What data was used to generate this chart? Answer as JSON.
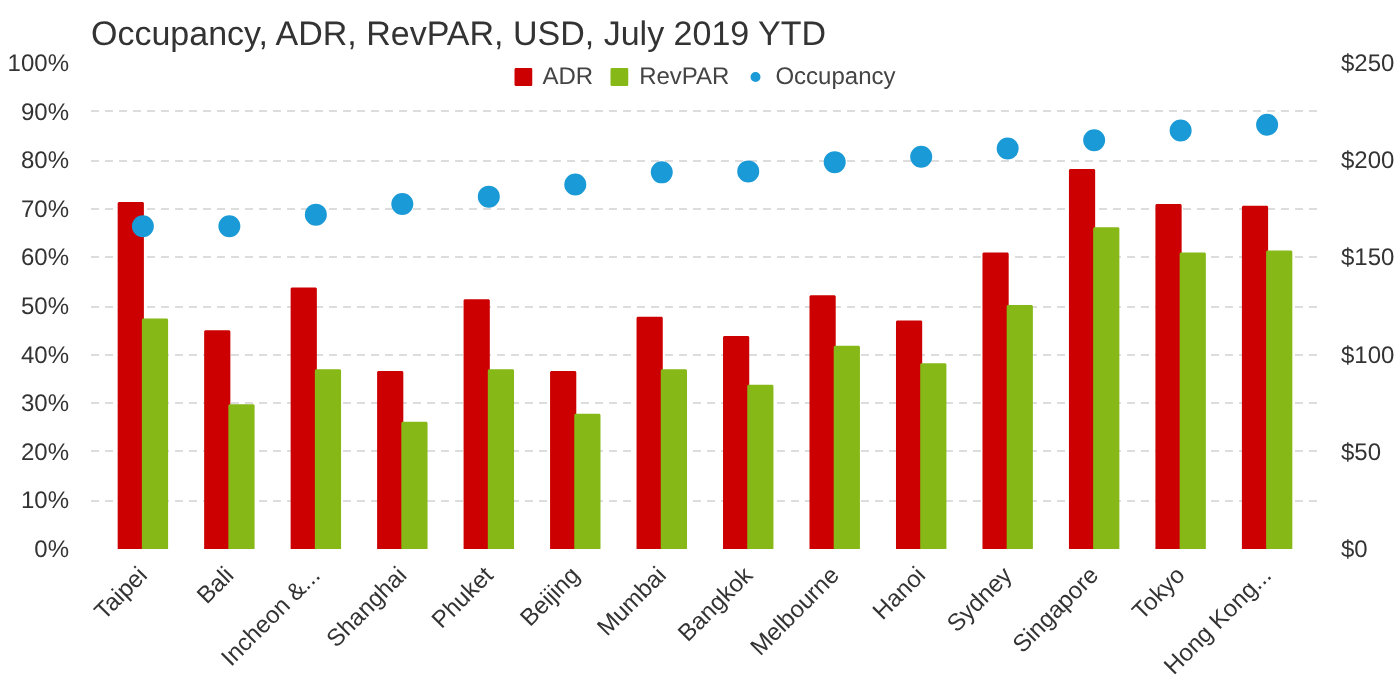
{
  "chart_data": {
    "type": "bar",
    "title": "Occupancy, ADR, RevPAR, USD, July 2019 YTD",
    "categories": [
      "Taipei",
      "Bali",
      "Incheon &...",
      "Shanghai",
      "Phuket",
      "Beijing",
      "Mumbai",
      "Bangkok",
      "Melbourne",
      "Hanoi",
      "Sydney",
      "Singapore",
      "Tokyo",
      "Hong Kong..."
    ],
    "series": [
      {
        "name": "ADR",
        "color": "#cc0000",
        "axis": "y2",
        "values": [
          178,
          112,
          134,
          91,
          128,
          91,
          119,
          109,
          130,
          117,
          152,
          195,
          177,
          176
        ]
      },
      {
        "name": "RevPAR",
        "color": "#86b817",
        "axis": "y2",
        "values": [
          118,
          74,
          92,
          65,
          92,
          69,
          92,
          84,
          104,
          95,
          125,
          165,
          152,
          153
        ]
      },
      {
        "name": "Occupancy",
        "type": "scatter",
        "marker": "circle",
        "color": "#1a9ad6",
        "values": [
          66.4,
          66.4,
          68.8,
          71,
          72.5,
          75,
          77.5,
          77.7,
          79.6,
          80.7,
          82.4,
          84.1,
          86.1,
          87.3
        ]
      }
    ],
    "ylim": [
      0,
      100
    ],
    "yticks": [
      {
        "value": 0,
        "label": "0%"
      },
      {
        "value": 10,
        "label": "10%"
      },
      {
        "value": 20,
        "label": "20%"
      },
      {
        "value": 30,
        "label": "30%"
      },
      {
        "value": 40,
        "label": "40%"
      },
      {
        "value": 50,
        "label": "50%"
      },
      {
        "value": 60,
        "label": "60%"
      },
      {
        "value": 70,
        "label": "70%"
      },
      {
        "value": 80,
        "label": "80%"
      },
      {
        "value": 90,
        "label": "90%"
      },
      {
        "value": 100,
        "label": "100%"
      }
    ],
    "y2lim": [
      0,
      250
    ],
    "y2ticks": [
      {
        "value": 0,
        "label": "$0"
      },
      {
        "value": 50,
        "label": "$50"
      },
      {
        "value": 100,
        "label": "$100"
      },
      {
        "value": 150,
        "label": "$150"
      },
      {
        "value": 200,
        "label": "$200"
      },
      {
        "value": 250,
        "label": "$250"
      }
    ],
    "grid": "y",
    "legend": "top"
  }
}
